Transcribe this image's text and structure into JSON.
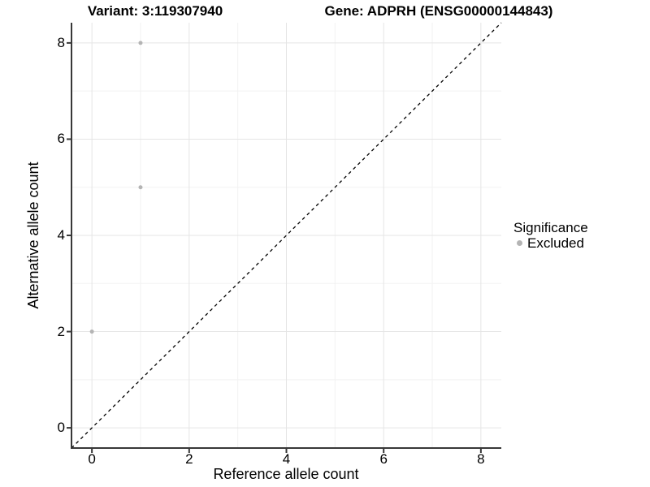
{
  "chart_data": {
    "type": "scatter",
    "title_left": "Variant: 3:119307940",
    "title_right": "Gene: ADPRH (ENSG00000144843)",
    "xlabel": "Reference allele count",
    "ylabel": "Alternative allele count",
    "xlim": [
      -0.42,
      8.42
    ],
    "ylim": [
      -0.42,
      8.42
    ],
    "x_ticks": [
      0,
      2,
      4,
      6,
      8
    ],
    "y_ticks": [
      0,
      2,
      4,
      6,
      8
    ],
    "x_minor_ticks": [
      1,
      3,
      5,
      7
    ],
    "y_minor_ticks": [
      1,
      3,
      5,
      7
    ],
    "grid": "major+minor",
    "series": [
      {
        "name": "Excluded",
        "marker": "circle",
        "color": "#b4b4b4",
        "points": [
          {
            "x": 0,
            "y": 2
          },
          {
            "x": 1,
            "y": 5
          },
          {
            "x": 1,
            "y": 8
          }
        ]
      }
    ],
    "reference_line": {
      "type": "identity",
      "from": -0.42,
      "to": 8.42,
      "style": "dashed",
      "color": "#000000"
    },
    "legend": {
      "position": "right",
      "title": "Significance",
      "items": [
        {
          "label": "Excluded",
          "color": "#b4b4b4",
          "marker": "circle"
        }
      ]
    }
  },
  "colors": {
    "background": "#ffffff",
    "grid_major": "#e5e5e5",
    "grid_minor": "#f2f2f2",
    "axis_line": "#383838",
    "tick_mark": "#383838",
    "point": "#b4b4b4",
    "reference_line": "#000000"
  }
}
